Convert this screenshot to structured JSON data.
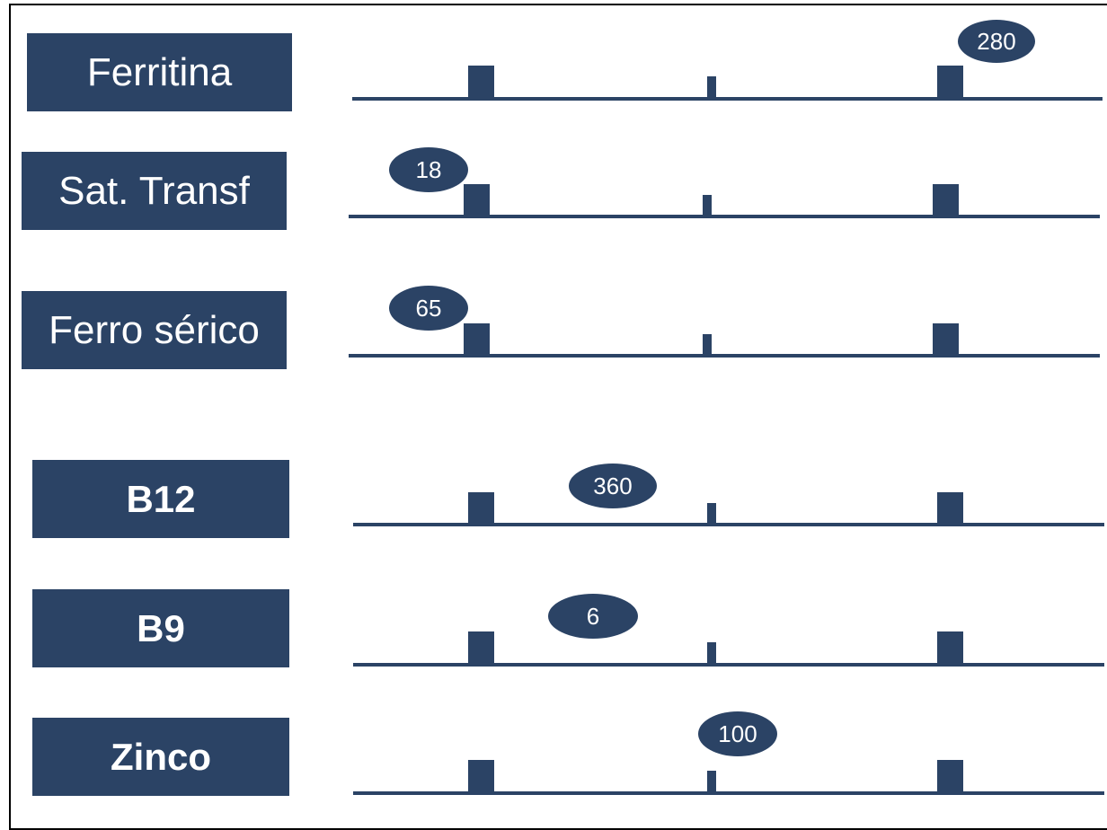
{
  "rows": [
    {
      "label": "Ferritina",
      "value": "280",
      "bold": false
    },
    {
      "label": "Sat. Transf",
      "value": "18",
      "bold": false
    },
    {
      "label": "Ferro sérico",
      "value": "65",
      "bold": false
    },
    {
      "label": "B12",
      "value": "360",
      "bold": true
    },
    {
      "label": "B9",
      "value": "6",
      "bold": true
    },
    {
      "label": "Zinco",
      "value": "100",
      "bold": true
    }
  ],
  "colors": {
    "accent": "#2b4365",
    "text": "#ffffff",
    "border": "#000000"
  }
}
